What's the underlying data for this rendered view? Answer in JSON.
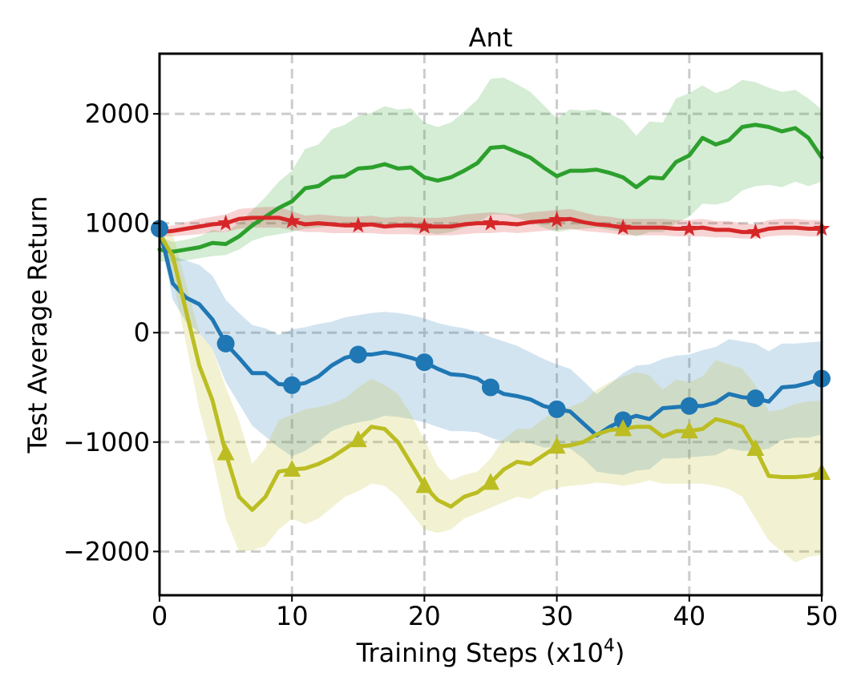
{
  "chart_data": {
    "type": "line",
    "title": "Ant",
    "xlabel_main": "Training Steps (x10",
    "xlabel_sup": "4",
    "xlabel_close": ")",
    "ylabel": "Test Average Return",
    "xlim": [
      0,
      50
    ],
    "ylim": [
      -2400,
      2550
    ],
    "xticks": [
      0,
      10,
      20,
      30,
      40,
      50
    ],
    "xtick_labels": [
      "0",
      "10",
      "20",
      "30",
      "40",
      "50"
    ],
    "yticks": [
      -2000,
      -1000,
      0,
      1000,
      2000
    ],
    "ytick_labels": [
      "−2000",
      "−1000",
      "0",
      "1000",
      "2000"
    ],
    "grid": true,
    "series": [
      {
        "name": "green",
        "color": "#2ca02c",
        "marker": "none",
        "x": [
          0,
          1,
          2,
          3,
          4,
          5,
          6,
          7,
          8,
          9,
          10,
          11,
          12,
          13,
          14,
          15,
          16,
          17,
          18,
          19,
          20,
          21,
          22,
          23,
          24,
          25,
          26,
          27,
          28,
          29,
          30,
          31,
          32,
          33,
          34,
          35,
          36,
          37,
          38,
          39,
          40,
          41,
          42,
          43,
          44,
          45,
          46,
          47,
          48,
          49,
          50
        ],
        "values": [
          760,
          740,
          760,
          780,
          820,
          810,
          880,
          980,
          1060,
          1140,
          1200,
          1320,
          1340,
          1420,
          1430,
          1500,
          1510,
          1540,
          1500,
          1510,
          1420,
          1390,
          1420,
          1480,
          1550,
          1690,
          1700,
          1650,
          1600,
          1510,
          1430,
          1480,
          1480,
          1490,
          1460,
          1420,
          1330,
          1420,
          1410,
          1560,
          1620,
          1780,
          1720,
          1760,
          1880,
          1900,
          1880,
          1840,
          1870,
          1780,
          1600
        ],
        "lower": [
          650,
          650,
          660,
          680,
          700,
          710,
          760,
          840,
          880,
          900,
          920,
          950,
          960,
          980,
          990,
          1000,
          990,
          990,
          960,
          950,
          920,
          900,
          920,
          960,
          1000,
          1080,
          1080,
          1050,
          1010,
          960,
          920,
          940,
          950,
          960,
          940,
          920,
          880,
          920,
          920,
          1000,
          1060,
          1180,
          1170,
          1200,
          1300,
          1340,
          1350,
          1330,
          1380,
          1340,
          1380
        ],
        "upper": [
          870,
          830,
          850,
          880,
          940,
          920,
          1000,
          1120,
          1240,
          1380,
          1480,
          1680,
          1720,
          1860,
          1900,
          1980,
          2010,
          2070,
          2040,
          2050,
          1920,
          1880,
          1920,
          2020,
          2130,
          2320,
          2330,
          2270,
          2200,
          2080,
          1960,
          2040,
          2030,
          2040,
          2000,
          1940,
          1800,
          1930,
          1920,
          2140,
          2190,
          2260,
          2190,
          2230,
          2310,
          2290,
          2240,
          2200,
          2220,
          2140,
          2040
        ]
      },
      {
        "name": "red",
        "color": "#d62728",
        "marker": "star",
        "x": [
          0,
          1,
          2,
          3,
          4,
          5,
          6,
          7,
          8,
          9,
          10,
          11,
          12,
          13,
          14,
          15,
          16,
          17,
          18,
          19,
          20,
          21,
          22,
          23,
          24,
          25,
          26,
          27,
          28,
          29,
          30,
          31,
          32,
          33,
          34,
          35,
          36,
          37,
          38,
          39,
          40,
          41,
          42,
          43,
          44,
          45,
          46,
          47,
          48,
          49,
          50
        ],
        "values": [
          920,
          930,
          950,
          970,
          990,
          1000,
          1040,
          1050,
          1050,
          1050,
          1020,
          990,
          1000,
          990,
          980,
          980,
          990,
          970,
          980,
          980,
          970,
          970,
          970,
          990,
          1000,
          1000,
          1000,
          990,
          1010,
          1020,
          1030,
          1040,
          1010,
          990,
          980,
          960,
          960,
          960,
          960,
          950,
          950,
          960,
          940,
          940,
          920,
          920,
          950,
          960,
          960,
          950,
          950
        ],
        "lower": [
          880,
          880,
          890,
          900,
          920,
          920,
          950,
          960,
          960,
          960,
          940,
          920,
          920,
          910,
          910,
          910,
          910,
          900,
          900,
          900,
          890,
          890,
          890,
          900,
          910,
          910,
          920,
          910,
          920,
          930,
          940,
          950,
          930,
          920,
          910,
          890,
          890,
          890,
          890,
          880,
          880,
          880,
          870,
          870,
          860,
          860,
          880,
          890,
          890,
          880,
          880
        ],
        "upper": [
          960,
          980,
          1010,
          1040,
          1060,
          1080,
          1130,
          1140,
          1150,
          1150,
          1110,
          1070,
          1080,
          1070,
          1060,
          1060,
          1070,
          1050,
          1060,
          1060,
          1050,
          1050,
          1060,
          1080,
          1090,
          1100,
          1090,
          1080,
          1100,
          1110,
          1120,
          1130,
          1100,
          1070,
          1060,
          1040,
          1040,
          1040,
          1040,
          1030,
          1030,
          1040,
          1020,
          1020,
          1000,
          990,
          1030,
          1040,
          1040,
          1030,
          1030
        ]
      },
      {
        "name": "blue",
        "color": "#1f77b4",
        "marker": "circle",
        "x": [
          0,
          1,
          2,
          3,
          4,
          5,
          6,
          7,
          8,
          9,
          10,
          11,
          12,
          13,
          14,
          15,
          16,
          17,
          18,
          19,
          20,
          21,
          22,
          23,
          24,
          25,
          26,
          27,
          28,
          29,
          30,
          31,
          32,
          33,
          34,
          35,
          36,
          37,
          38,
          39,
          40,
          41,
          42,
          43,
          44,
          45,
          46,
          47,
          48,
          49,
          50
        ],
        "values": [
          950,
          450,
          320,
          260,
          120,
          -100,
          -230,
          -370,
          -370,
          -470,
          -480,
          -460,
          -400,
          -300,
          -230,
          -200,
          -200,
          -180,
          -200,
          -230,
          -270,
          -330,
          -380,
          -390,
          -420,
          -500,
          -560,
          -580,
          -610,
          -670,
          -700,
          -720,
          -830,
          -940,
          -860,
          -800,
          -760,
          -790,
          -690,
          -680,
          -670,
          -670,
          -640,
          -560,
          -590,
          -600,
          -630,
          -500,
          -490,
          -460,
          -420
        ],
        "lower": [
          900,
          300,
          100,
          0,
          -150,
          -450,
          -650,
          -850,
          -950,
          -1050,
          -1130,
          -1080,
          -1000,
          -900,
          -850,
          -820,
          -800,
          -760,
          -770,
          -790,
          -820,
          -860,
          -900,
          -900,
          -910,
          -960,
          -1000,
          -1000,
          -1010,
          -1050,
          -1050,
          -1060,
          -1150,
          -1270,
          -1290,
          -1300,
          -1260,
          -1250,
          -1150,
          -1150,
          -1140,
          -1130,
          -1120,
          -1060,
          -1080,
          -1080,
          -1060,
          -980,
          -960,
          -960,
          -930
        ],
        "upper": [
          990,
          700,
          660,
          620,
          520,
          300,
          180,
          70,
          40,
          -20,
          30,
          50,
          80,
          100,
          140,
          160,
          180,
          190,
          180,
          160,
          130,
          90,
          60,
          40,
          10,
          -40,
          -80,
          -120,
          -180,
          -240,
          -290,
          -330,
          -440,
          -560,
          -470,
          -370,
          -300,
          -290,
          -240,
          -210,
          -200,
          -160,
          -130,
          -60,
          -80,
          -100,
          -170,
          -100,
          -100,
          -90,
          -80
        ]
      },
      {
        "name": "olive",
        "color": "#bcbd22",
        "marker": "triangle",
        "x": [
          0,
          1,
          2,
          3,
          4,
          5,
          6,
          7,
          8,
          9,
          10,
          11,
          12,
          13,
          14,
          15,
          16,
          17,
          18,
          19,
          20,
          21,
          22,
          23,
          24,
          25,
          26,
          27,
          28,
          29,
          30,
          31,
          32,
          33,
          34,
          35,
          36,
          37,
          38,
          39,
          40,
          41,
          42,
          43,
          44,
          45,
          46,
          47,
          48,
          49,
          50
        ],
        "values": [
          900,
          700,
          200,
          -300,
          -620,
          -1100,
          -1500,
          -1620,
          -1500,
          -1270,
          -1250,
          -1240,
          -1200,
          -1140,
          -1060,
          -980,
          -860,
          -880,
          -1000,
          -1200,
          -1400,
          -1530,
          -1590,
          -1500,
          -1460,
          -1370,
          -1250,
          -1180,
          -1200,
          -1120,
          -1040,
          -1030,
          -1000,
          -930,
          -890,
          -880,
          -860,
          -860,
          -950,
          -900,
          -900,
          -880,
          -790,
          -820,
          -860,
          -1060,
          -1310,
          -1320,
          -1320,
          -1310,
          -1280
        ],
        "lower": [
          850,
          500,
          -100,
          -700,
          -1150,
          -1700,
          -2000,
          -1990,
          -1950,
          -1800,
          -1700,
          -1750,
          -1700,
          -1600,
          -1500,
          -1450,
          -1380,
          -1400,
          -1500,
          -1650,
          -1800,
          -1830,
          -1800,
          -1700,
          -1650,
          -1600,
          -1550,
          -1500,
          -1520,
          -1450,
          -1420,
          -1400,
          -1390,
          -1370,
          -1380,
          -1400,
          -1380,
          -1350,
          -1380,
          -1380,
          -1380,
          -1380,
          -1400,
          -1430,
          -1500,
          -1700,
          -1900,
          -2000,
          -2100,
          -2050,
          -2030
        ],
        "upper": [
          950,
          900,
          450,
          0,
          -150,
          -500,
          -800,
          -1200,
          -1050,
          -800,
          -750,
          -700,
          -680,
          -650,
          -600,
          -500,
          -420,
          -480,
          -560,
          -750,
          -980,
          -1220,
          -1350,
          -1300,
          -1270,
          -1150,
          -970,
          -880,
          -880,
          -790,
          -700,
          -680,
          -630,
          -520,
          -450,
          -400,
          -360,
          -390,
          -520,
          -430,
          -450,
          -400,
          -250,
          -290,
          -330,
          -480,
          -720,
          -700,
          -650,
          -630,
          -620
        ]
      }
    ],
    "markers": [
      {
        "series": "red",
        "shape": "star",
        "x": [
          5,
          10,
          15,
          20,
          25,
          30,
          35,
          40,
          45,
          50
        ]
      },
      {
        "series": "blue",
        "shape": "circle",
        "x": [
          0,
          5,
          10,
          15,
          20,
          25,
          30,
          35,
          40,
          45,
          50
        ]
      },
      {
        "series": "olive",
        "shape": "triangle",
        "x": [
          5,
          10,
          15,
          20,
          25,
          30,
          35,
          40,
          45,
          50
        ]
      }
    ]
  }
}
